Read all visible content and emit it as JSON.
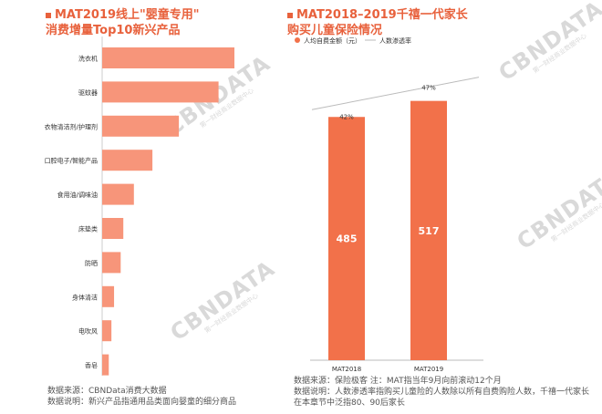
{
  "left": {
    "title_line1": "MAT2019线上\"婴童专用\"",
    "title_line2": "消费增量Top10新兴产品",
    "footnote_line1": "数据来源：CBNData消费大数据",
    "footnote_line2": "数据说明：新兴产品指通用品类面向婴童的细分商品"
  },
  "right": {
    "title_line1": "MAT2018–2019千禧一代家长",
    "title_line2": "购买儿童保险情况",
    "footnote_line1": "数据来源：保险极客 注：MAT指当年9月向前滚动12个月",
    "footnote_line2": "数据说明：人数渗透率指购买儿童险的人数除以所有自费购险人数，千禧一代家长",
    "footnote_line3": "在本章节中泛指80、90后家长"
  },
  "watermark": {
    "brand": "CBNDATA",
    "sub": "第一财经商业数据中心"
  },
  "colors": {
    "bar_left": "#f7957a",
    "bar_right": "#f2714a",
    "line": "#bbbbbb"
  },
  "chart_data": [
    {
      "type": "bar",
      "orientation": "horizontal",
      "categories": [
        "洗衣机",
        "驱蚊器",
        "衣物清洁剂/护理剂",
        "口腔电子/智能产品",
        "食用油/调味油",
        "床垫类",
        "防晒",
        "身体清洁",
        "电吹风",
        "香皂"
      ],
      "values": [
        100,
        88,
        58,
        38,
        24,
        16,
        14,
        9,
        7,
        5
      ],
      "value_units": "relative",
      "title": "MAT2019线上\"婴童专用\"消费增量Top10新兴产品",
      "xlabel": "",
      "ylabel": ""
    },
    {
      "type": "bar",
      "categories": [
        "MAT2018",
        "MAT2019"
      ],
      "series": [
        {
          "name": "人均自费金额（元）",
          "type": "bar",
          "values": [
            485,
            517
          ]
        },
        {
          "name": "人数渗透率",
          "type": "line",
          "values": [
            "42%",
            "47%"
          ]
        }
      ],
      "legend": "top-left",
      "ylim": [
        0,
        600
      ]
    }
  ]
}
